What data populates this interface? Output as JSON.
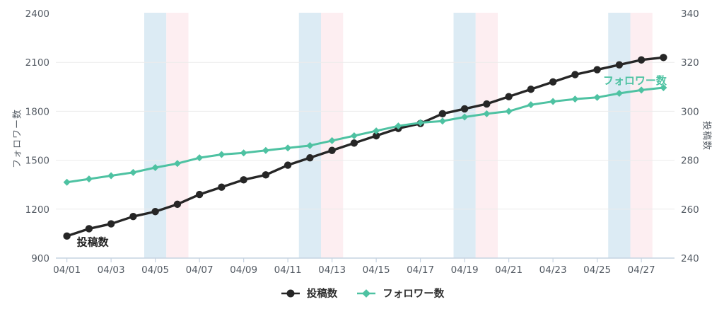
{
  "chart_data": {
    "type": "line",
    "title": "",
    "x": [
      "04/01",
      "04/02",
      "04/03",
      "04/04",
      "04/05",
      "04/06",
      "04/07",
      "04/08",
      "04/09",
      "04/10",
      "04/11",
      "04/12",
      "04/13",
      "04/14",
      "04/15",
      "04/16",
      "04/17",
      "04/18",
      "04/19",
      "04/20",
      "04/21",
      "04/22",
      "04/23",
      "04/24",
      "04/25",
      "04/26",
      "04/27",
      "04/28"
    ],
    "x_tick_labels": [
      "04/01",
      "04/03",
      "04/05",
      "04/07",
      "04/09",
      "04/11",
      "04/13",
      "04/15",
      "04/17",
      "04/19",
      "04/21",
      "04/23",
      "04/25",
      "04/27"
    ],
    "series": [
      {
        "name": "投稿数",
        "yaxis": "right",
        "color": "#262626",
        "marker": "circle",
        "values": [
          249,
          252,
          254,
          257,
          259,
          262,
          266,
          269,
          272,
          274,
          278,
          281,
          284,
          287,
          290,
          293,
          295,
          299,
          301,
          303,
          306,
          309,
          312,
          315,
          317,
          319,
          321,
          322
        ]
      },
      {
        "name": "フォロワー数",
        "yaxis": "left",
        "color": "#4ec2a2",
        "marker": "diamond",
        "values": [
          1365,
          1385,
          1405,
          1425,
          1455,
          1480,
          1515,
          1535,
          1545,
          1560,
          1575,
          1590,
          1620,
          1650,
          1680,
          1710,
          1730,
          1740,
          1765,
          1785,
          1800,
          1840,
          1860,
          1875,
          1885,
          1910,
          1930,
          1945
        ]
      }
    ],
    "left_axis": {
      "title": "フォロワー数",
      "min": 900,
      "max": 2400,
      "ticks": [
        900,
        1200,
        1500,
        1800,
        2100,
        2400
      ]
    },
    "right_axis": {
      "title": "投稿数",
      "min": 240,
      "max": 340,
      "ticks": [
        240,
        260,
        280,
        300,
        320,
        340
      ]
    },
    "weekend_bands": {
      "saturday_dates": [
        "04/05",
        "04/12",
        "04/19",
        "04/26"
      ],
      "saturday_color": "#dcebf4",
      "sunday_dates": [
        "04/06",
        "04/13",
        "04/20",
        "04/27"
      ],
      "sunday_color": "#fdeef1"
    },
    "annotations": [
      {
        "id": "posts-series-label",
        "text": "投稿数",
        "series": 0,
        "point_index": 0,
        "placement": "below-right",
        "color": "#1f1f1f"
      },
      {
        "id": "followers-series-label",
        "text": "フォロワー数",
        "series": 1,
        "point_index": 25,
        "placement": "above",
        "color": "#4ec2a2"
      }
    ],
    "legend": {
      "position": "bottom",
      "items": [
        "投稿数",
        "フォロワー数"
      ]
    },
    "grid": true,
    "style": {
      "background": "#ffffff",
      "gridline_color": "#ebebeb",
      "axis_line_color": "#c6d3e1",
      "tick_label_color": "#545b64",
      "axis_title_color": "#5a6169",
      "legend_text_color": "#2e2e2e"
    }
  }
}
